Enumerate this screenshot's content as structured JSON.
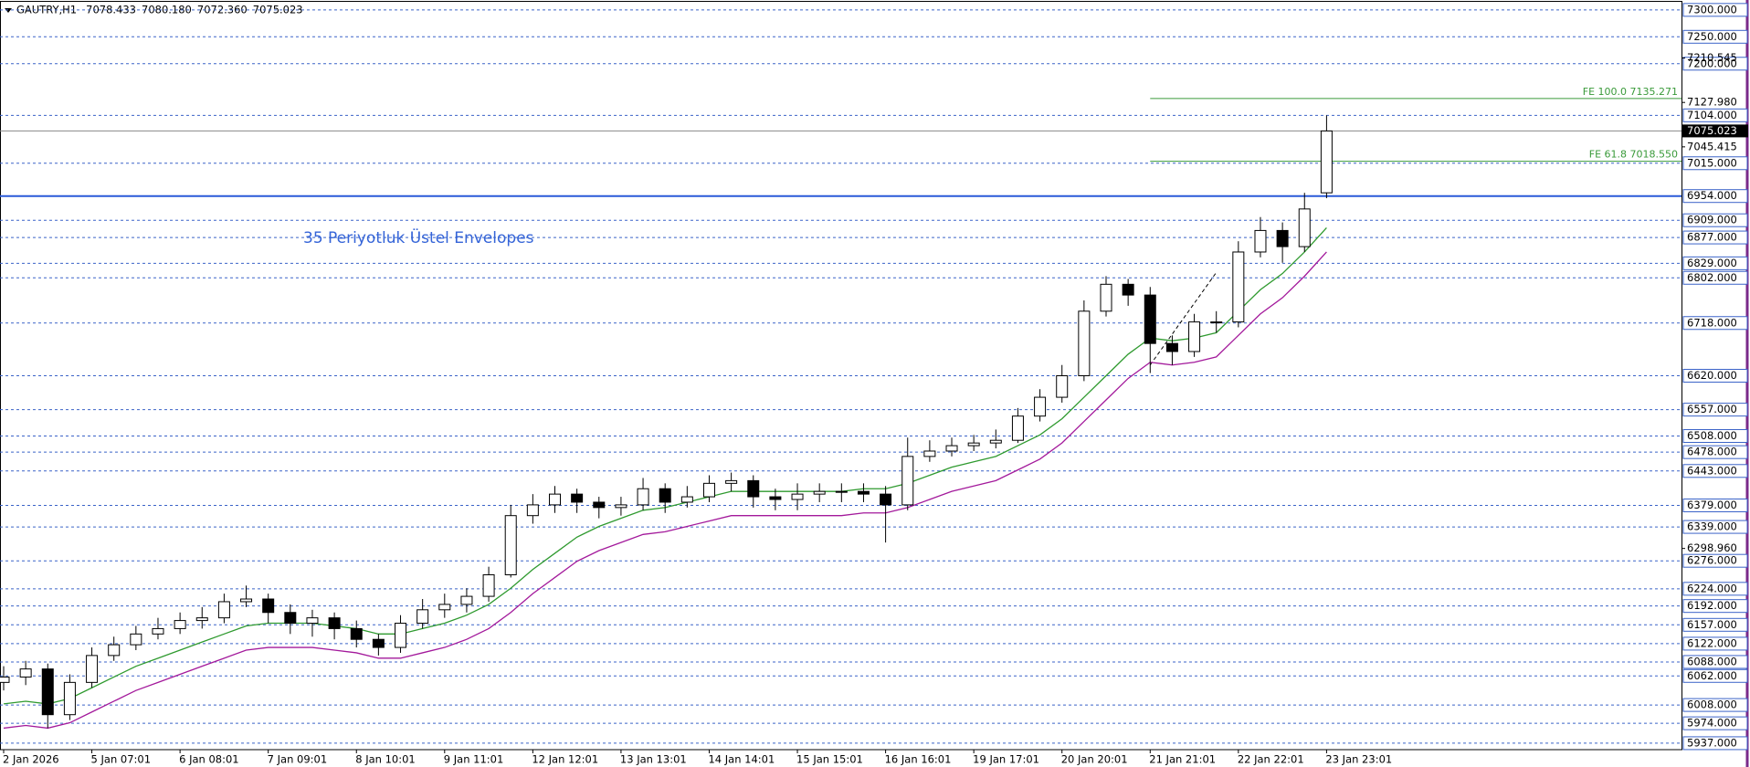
{
  "chart_data": {
    "type": "candlestick",
    "symbol": "GAUTRY,H1",
    "quote": [
      "7078.433",
      "7080.180",
      "7072.360",
      "7075.023"
    ],
    "annotation": "35 Periyotluk Üstel Envelopes",
    "categories": [
      "2 Jan 2026",
      null,
      null,
      null,
      "5 Jan 07:01",
      null,
      null,
      null,
      "6 Jan 08:01",
      null,
      null,
      null,
      "7 Jan 09:01",
      null,
      null,
      null,
      "8 Jan 10:01",
      null,
      null,
      null,
      "9 Jan 11:01",
      null,
      null,
      null,
      "12 Jan 12:01",
      null,
      null,
      null,
      "13 Jan 13:01",
      null,
      null,
      null,
      "14 Jan 14:01",
      null,
      null,
      null,
      "15 Jan 15:01",
      null,
      null,
      null,
      "16 Jan 16:01",
      null,
      null,
      null,
      "19 Jan 17:01",
      null,
      null,
      null,
      "20 Jan 20:01",
      null,
      null,
      null,
      "21 Jan 21:01",
      null,
      null,
      null,
      "22 Jan 22:01",
      null,
      null,
      null,
      "23 Jan 23:01"
    ],
    "open": [
      6050,
      6060,
      6075,
      5990,
      6050,
      6100,
      6120,
      6140,
      6150,
      6165,
      6170,
      6200,
      6205,
      6180,
      6160,
      6170,
      6150,
      6130,
      6115,
      6160,
      6185,
      6195,
      6210,
      6250,
      6360,
      6380,
      6400,
      6385,
      6375,
      6380,
      6410,
      6385,
      6395,
      6420,
      6425,
      6395,
      6390,
      6400,
      6405,
      6405,
      6400,
      6380,
      6470,
      6480,
      6490,
      6495,
      6500,
      6545,
      6580,
      6620,
      6740,
      6790,
      6770,
      6680,
      6665,
      6720,
      6720,
      6850,
      6890,
      6860,
      6960
    ],
    "high": [
      6080,
      6090,
      6085,
      6065,
      6115,
      6135,
      6155,
      6170,
      6180,
      6190,
      6215,
      6230,
      6215,
      6195,
      6185,
      6180,
      6165,
      6140,
      6175,
      6205,
      6215,
      6225,
      6265,
      6380,
      6400,
      6415,
      6410,
      6395,
      6395,
      6430,
      6420,
      6415,
      6435,
      6440,
      6435,
      6410,
      6420,
      6420,
      6420,
      6420,
      6415,
      6505,
      6500,
      6505,
      6510,
      6520,
      6560,
      6595,
      6640,
      6760,
      6805,
      6800,
      6785,
      6695,
      6735,
      6740,
      6870,
      6915,
      6905,
      6960,
      7104
    ],
    "low": [
      6035,
      6045,
      5965,
      5980,
      6040,
      6090,
      6110,
      6130,
      6140,
      6150,
      6160,
      6190,
      6160,
      6140,
      6135,
      6130,
      6115,
      6100,
      6105,
      6150,
      6170,
      6180,
      6200,
      6245,
      6345,
      6365,
      6365,
      6355,
      6360,
      6370,
      6365,
      6375,
      6385,
      6405,
      6375,
      6370,
      6370,
      6385,
      6385,
      6385,
      6310,
      6370,
      6460,
      6470,
      6480,
      6485,
      6495,
      6535,
      6570,
      6610,
      6730,
      6750,
      6625,
      6640,
      6655,
      6700,
      6710,
      6840,
      6830,
      6850,
      6950
    ],
    "close": [
      6060,
      6075,
      5990,
      6050,
      6100,
      6120,
      6140,
      6150,
      6165,
      6170,
      6200,
      6205,
      6180,
      6160,
      6170,
      6150,
      6130,
      6115,
      6160,
      6185,
      6195,
      6210,
      6250,
      6360,
      6380,
      6400,
      6385,
      6375,
      6380,
      6410,
      6385,
      6395,
      6420,
      6425,
      6395,
      6390,
      6400,
      6405,
      6405,
      6400,
      6380,
      6470,
      6480,
      6490,
      6495,
      6500,
      6545,
      6580,
      6620,
      6740,
      6790,
      6770,
      6680,
      6665,
      6720,
      6720,
      6850,
      6890,
      6860,
      6930,
      7075
    ],
    "up_color": "#ffffff",
    "down_color": "#000000",
    "series": [
      {
        "color": "#2f9a2f",
        "values": [
          6010,
          6015,
          6010,
          6020,
          6040,
          6060,
          6080,
          6095,
          6110,
          6125,
          6140,
          6155,
          6160,
          6160,
          6160,
          6155,
          6150,
          6140,
          6140,
          6150,
          6160,
          6175,
          6195,
          6225,
          6260,
          6290,
          6320,
          6340,
          6355,
          6370,
          6375,
          6385,
          6395,
          6405,
          6405,
          6405,
          6405,
          6405,
          6405,
          6410,
          6410,
          6420,
          6435,
          6450,
          6460,
          6470,
          6490,
          6510,
          6540,
          6580,
          6620,
          6660,
          6690,
          6685,
          6690,
          6700,
          6740,
          6780,
          6810,
          6850,
          6895
        ]
      },
      {
        "color": "#a3199b",
        "values": [
          5965,
          5970,
          5965,
          5975,
          5995,
          6015,
          6035,
          6050,
          6065,
          6080,
          6095,
          6110,
          6115,
          6115,
          6115,
          6110,
          6105,
          6095,
          6095,
          6105,
          6115,
          6130,
          6150,
          6180,
          6215,
          6245,
          6275,
          6295,
          6310,
          6325,
          6330,
          6340,
          6350,
          6360,
          6360,
          6360,
          6360,
          6360,
          6360,
          6365,
          6365,
          6375,
          6390,
          6405,
          6415,
          6425,
          6445,
          6465,
          6495,
          6535,
          6575,
          6615,
          6645,
          6640,
          6645,
          6655,
          6695,
          6735,
          6765,
          6805,
          6850
        ]
      }
    ],
    "ylim": [
      5925,
      7315
    ],
    "yticks": [
      {
        "value": 7300,
        "label": "7300.000"
      },
      {
        "value": 7250,
        "label": "7250.000"
      },
      {
        "value": 7200,
        "label": "7200.000"
      },
      {
        "value": 7104,
        "label": "7104.000"
      },
      {
        "value": 7015,
        "label": "7015.000"
      },
      {
        "value": 6954,
        "label": "6954.000"
      },
      {
        "value": 6909,
        "label": "6909.000"
      },
      {
        "value": 6877,
        "label": "6877.000"
      },
      {
        "value": 6829,
        "label": "6829.000"
      },
      {
        "value": 6802,
        "label": "6802.000"
      },
      {
        "value": 6718,
        "label": "6718.000"
      },
      {
        "value": 6620,
        "label": "6620.000"
      },
      {
        "value": 6557,
        "label": "6557.000"
      },
      {
        "value": 6508,
        "label": "6508.000"
      },
      {
        "value": 6478,
        "label": "6478.000"
      },
      {
        "value": 6443,
        "label": "6443.000"
      },
      {
        "value": 6379,
        "label": "6379.000"
      },
      {
        "value": 6339,
        "label": "6339.000"
      },
      {
        "value": 6276,
        "label": "6276.000"
      },
      {
        "value": 6224,
        "label": "6224.000"
      },
      {
        "value": 6192,
        "label": "6192.000"
      },
      {
        "value": 6157,
        "label": "6157.000"
      },
      {
        "value": 6122,
        "label": "6122.000"
      },
      {
        "value": 6088,
        "label": "6088.000"
      },
      {
        "value": 6062,
        "label": "6062.000"
      },
      {
        "value": 6008,
        "label": "6008.000"
      },
      {
        "value": 5974,
        "label": "5974.000"
      },
      {
        "value": 5937,
        "label": "5937.000"
      }
    ],
    "scale_ticks": [
      {
        "value": 7210.545,
        "label": "7210.545"
      },
      {
        "value": 7127.98,
        "label": "7127.980"
      },
      {
        "value": 7045.415,
        "label": "7045.415"
      },
      {
        "value": 6298.96,
        "label": "6298.960"
      }
    ],
    "current_price": {
      "value": 7075.023,
      "label": "7075.023"
    },
    "support_line": {
      "value": 6954,
      "color": "#2a5ad8"
    },
    "fibo": [
      {
        "label": "FE 100.0 7135.271",
        "value": 7135.271,
        "start": 52
      },
      {
        "label": "FE 61.8 7018.550",
        "value": 7018.55,
        "start": 52
      }
    ],
    "fibo_color": "#3a9a3a",
    "trendline": {
      "x": [
        52,
        55
      ],
      "y": [
        6640,
        6812
      ]
    }
  }
}
